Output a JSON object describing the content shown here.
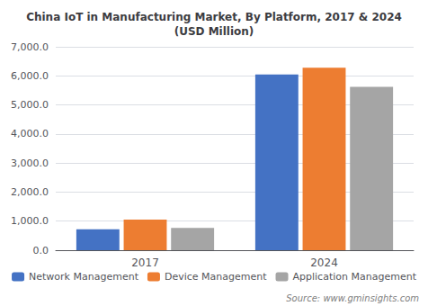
{
  "chart_data": {
    "type": "bar",
    "title": "China IoT in Manufacturing Market, By Platform, 2017 & 2024\n(USD Million)",
    "categories": [
      "2017",
      "2024"
    ],
    "series": [
      {
        "name": "Network Management",
        "color": "#4472c4",
        "values": [
          720,
          6050
        ]
      },
      {
        "name": "Device Management",
        "color": "#ed7d31",
        "values": [
          1050,
          6280
        ]
      },
      {
        "name": "Application Management",
        "color": "#a5a5a5",
        "values": [
          770,
          5620
        ]
      }
    ],
    "ylim": [
      0,
      7000
    ],
    "yticks": [
      {
        "value": 0,
        "label": "0.0"
      },
      {
        "value": 1000,
        "label": "1,000.0"
      },
      {
        "value": 2000,
        "label": "2,000.0"
      },
      {
        "value": 3000,
        "label": "3,000.0"
      },
      {
        "value": 4000,
        "label": "4,000.0"
      },
      {
        "value": 5000,
        "label": "5,000.0"
      },
      {
        "value": 6000,
        "label": "6,000.0"
      },
      {
        "value": 7000,
        "label": "7,000.0"
      }
    ],
    "grid": true,
    "legend": "bottom",
    "annotation": "Source: www.gminsights.com"
  }
}
